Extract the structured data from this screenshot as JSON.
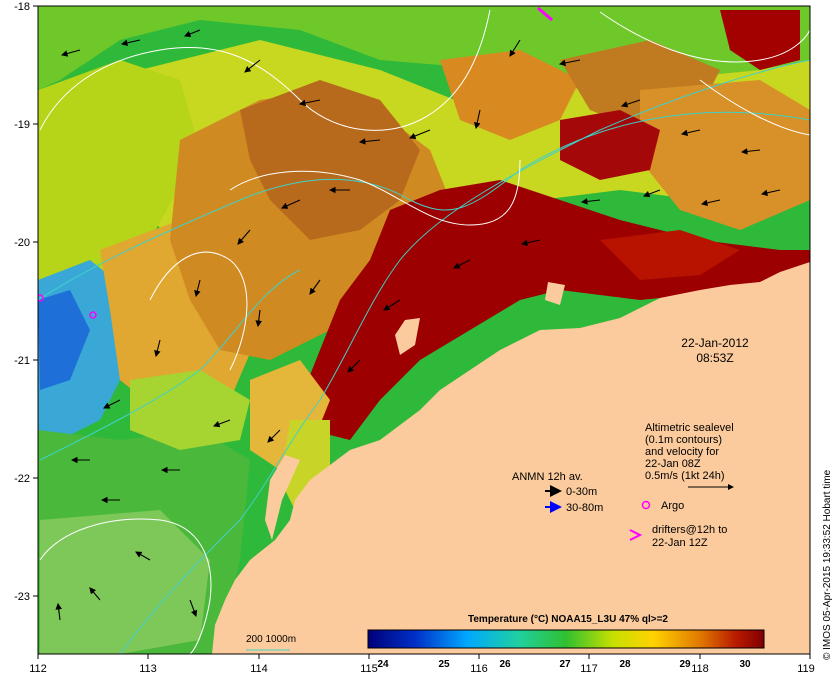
{
  "map": {
    "date_line": "22-Jan-2012",
    "time_line": "08:53Z",
    "lat_labels": [
      "-18",
      "-19",
      "-20",
      "-21",
      "-22",
      "-23"
    ],
    "lon_labels": [
      "112",
      "113",
      "114",
      "115",
      "116",
      "117",
      "118",
      "119"
    ],
    "altimetry_note": [
      "Altimetric sealevel",
      "(0.1m contours)",
      "and velocity for",
      "22-Jan 08Z",
      "0.5m/s (1kt 24h)"
    ],
    "anmn_title": "ANMN 12h av.",
    "anmn_items": [
      {
        "label": "0-30m",
        "color": "#000000"
      },
      {
        "label": "30-80m",
        "color": "#0000ff"
      }
    ],
    "argo_label": "Argo",
    "drifter_lines": [
      "drifters@12h to",
      "22-Jan 12Z"
    ],
    "isobath_label": "200  1000m",
    "colorbar_title": "Temperature (°C) NOAA15_L3U 47% ql>=2",
    "colorbar_ticks": [
      "24",
      "25",
      "26",
      "27",
      "28",
      "29",
      "30"
    ],
    "credit": "© IMOS 05-Apr-2015 19:33:52 Hobart time",
    "colors": {
      "land": "#fbcb9d",
      "argo_marker": "#ff00ff",
      "isobath": "#3fd1c8",
      "sst_hot": "#9c0000",
      "sst_warm": "#d98a1a",
      "sst_mid": "#96d020",
      "sst_cool": "#1fb42a",
      "sst_cold": "#1e9bd7"
    }
  }
}
